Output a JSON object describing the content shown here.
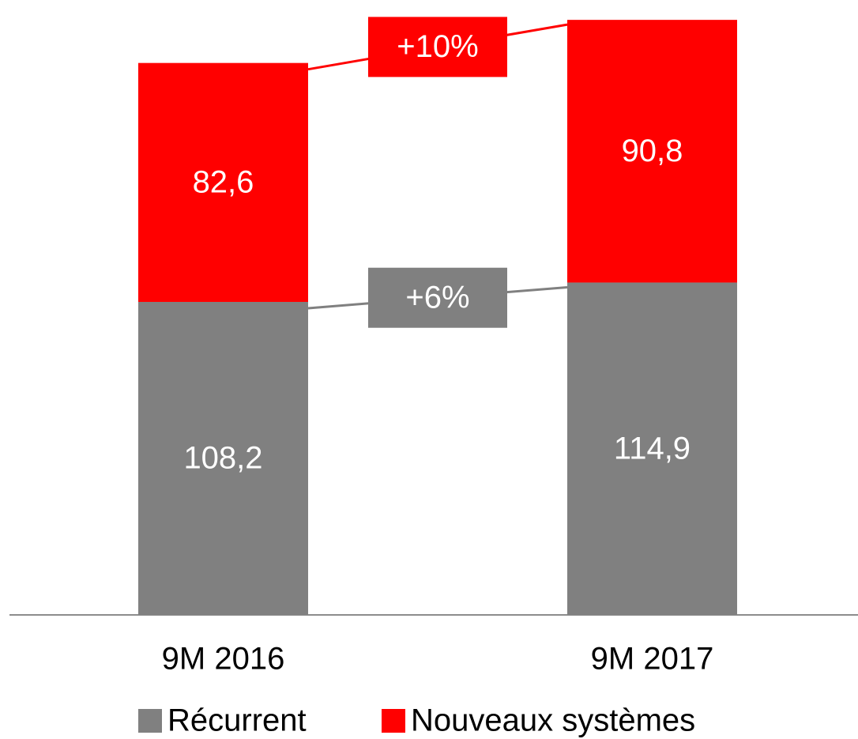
{
  "chart_data": {
    "type": "stacked_bar",
    "categories": [
      "9M 2016",
      "9M 2017"
    ],
    "series": [
      {
        "name": "Récurrent",
        "color": "#808080",
        "values": [
          108.2,
          114.9
        ],
        "value_labels": [
          "108,2",
          "114,9"
        ]
      },
      {
        "name": "Nouveaux systèmes",
        "color": "#ff0000",
        "values": [
          82.6,
          90.8
        ],
        "value_labels": [
          "82,6",
          "90,8"
        ]
      }
    ],
    "annotations": [
      "+6%",
      "+10%"
    ]
  }
}
